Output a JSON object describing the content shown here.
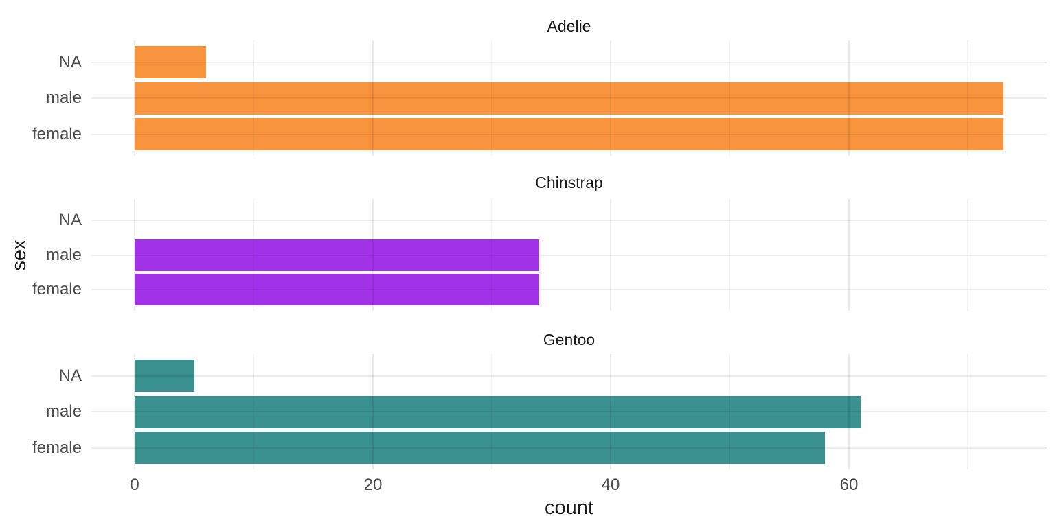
{
  "chart_data": {
    "type": "bar",
    "orientation": "horizontal",
    "title": "",
    "xlabel": "count",
    "ylabel": "sex",
    "categories_top_to_bottom": [
      "NA",
      "male",
      "female"
    ],
    "x_ticks": [
      0,
      20,
      40,
      60
    ],
    "x_minor_gridlines": [
      10,
      30,
      50,
      70
    ],
    "xlim": [
      -3.65,
      76.65
    ],
    "grid": "vertical major+minor, horizontal major only",
    "legend": "none",
    "facets": [
      {
        "label": "Adelie",
        "color": "#F9943E",
        "values": {
          "NA": 6,
          "male": 73,
          "female": 73
        }
      },
      {
        "label": "Chinstrap",
        "color": "#A232E8",
        "values": {
          "NA": 0,
          "male": 34,
          "female": 34
        }
      },
      {
        "label": "Gentoo",
        "color": "#3B9090",
        "values": {
          "NA": 5,
          "male": 61,
          "female": 58
        }
      }
    ]
  },
  "style": {
    "background": "#FFFFFF",
    "tick_label_color": "#4D4D4D",
    "title_color": "#1A1A1A"
  }
}
